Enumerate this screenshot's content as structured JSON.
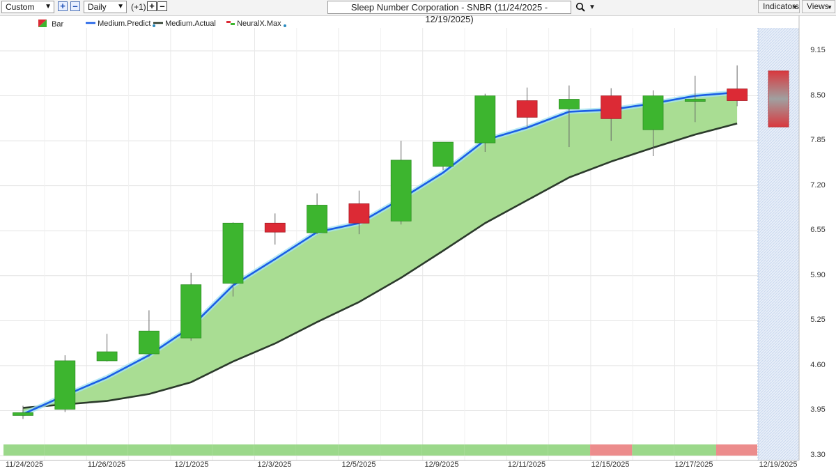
{
  "toolbar": {
    "view_select": "Custom",
    "interval_select": "Daily",
    "offset_label": "(+1)",
    "chart_title": "Sleep Number Corporation - SNBR (11/24/2025 - 12/19/2025)",
    "indicators_label": "Indicators",
    "views_label": "Views"
  },
  "legend": {
    "bar": "Bar",
    "predict": "Medium.Predict",
    "actual": "Medium.Actual",
    "neural": "NeuralX.Max"
  },
  "colors": {
    "up": "#3db52f",
    "down": "#dc2a35",
    "predict_line": "#1a5ee6",
    "actual_line": "#2b3a2b",
    "fill": "#a9dd93",
    "strip_green": "#9bd88a",
    "strip_red": "#ec8c8c"
  },
  "chart_data": {
    "type": "candlestick",
    "title": "Sleep Number Corporation - SNBR (11/24/2025 - 12/19/2025)",
    "ylim": [
      3.3,
      9.5
    ],
    "yticks": [
      "9.15",
      "8.50",
      "7.85",
      "7.20",
      "6.55",
      "5.90",
      "5.25",
      "4.60",
      "3.95",
      "3.30"
    ],
    "xtick_labels": [
      "11/24/2025",
      "11/26/2025",
      "12/1/2025",
      "12/3/2025",
      "12/5/2025",
      "12/9/2025",
      "12/11/2025",
      "12/15/2025",
      "12/17/2025",
      "12/19/2025"
    ],
    "candles": [
      {
        "open": 3.88,
        "high": 4.02,
        "low": 3.83,
        "close": 3.92
      },
      {
        "open": 3.97,
        "high": 4.75,
        "low": 3.93,
        "close": 4.67
      },
      {
        "open": 4.67,
        "high": 5.06,
        "low": 4.66,
        "close": 4.8
      },
      {
        "open": 4.77,
        "high": 5.4,
        "low": 4.73,
        "close": 5.1
      },
      {
        "open": 5.0,
        "high": 5.94,
        "low": 4.96,
        "close": 5.77
      },
      {
        "open": 5.79,
        "high": 6.67,
        "low": 5.6,
        "close": 6.66
      },
      {
        "open": 6.66,
        "high": 6.8,
        "low": 6.35,
        "close": 6.53
      },
      {
        "open": 6.52,
        "high": 7.09,
        "low": 6.5,
        "close": 6.92
      },
      {
        "open": 6.94,
        "high": 7.13,
        "low": 6.5,
        "close": 6.66
      },
      {
        "open": 6.69,
        "high": 7.85,
        "low": 6.64,
        "close": 7.57
      },
      {
        "open": 7.48,
        "high": 7.83,
        "low": 7.43,
        "close": 7.83
      },
      {
        "open": 7.82,
        "high": 8.53,
        "low": 7.69,
        "close": 8.5
      },
      {
        "open": 8.43,
        "high": 8.62,
        "low": 8.04,
        "close": 8.19
      },
      {
        "open": 8.31,
        "high": 8.65,
        "low": 7.76,
        "close": 8.45
      },
      {
        "open": 8.5,
        "high": 8.61,
        "low": 7.85,
        "close": 8.17
      },
      {
        "open": 8.01,
        "high": 8.58,
        "low": 7.63,
        "close": 8.5
      },
      {
        "open": 8.42,
        "high": 8.79,
        "low": 8.12,
        "close": 8.45
      },
      {
        "open": 8.6,
        "high": 8.94,
        "low": 8.35,
        "close": 8.43
      }
    ],
    "series": [
      {
        "name": "Medium.Predict",
        "values": [
          3.9,
          4.17,
          4.43,
          4.75,
          5.16,
          5.76,
          6.14,
          6.53,
          6.66,
          7.01,
          7.39,
          7.86,
          8.04,
          8.27,
          8.3,
          8.39,
          8.5,
          8.55
        ]
      },
      {
        "name": "Medium.Actual",
        "values": [
          3.99,
          4.04,
          4.09,
          4.19,
          4.36,
          4.66,
          4.92,
          5.23,
          5.52,
          5.87,
          6.26,
          6.66,
          6.99,
          7.32,
          7.55,
          7.75,
          7.94,
          8.1
        ]
      }
    ],
    "neural_forecast": {
      "high": 8.86,
      "low": 8.05
    },
    "signal_strip": [
      "green",
      "green",
      "green",
      "green",
      "green",
      "green",
      "green",
      "green",
      "green",
      "green",
      "green",
      "green",
      "green",
      "green",
      "red",
      "green",
      "green",
      "red"
    ]
  }
}
